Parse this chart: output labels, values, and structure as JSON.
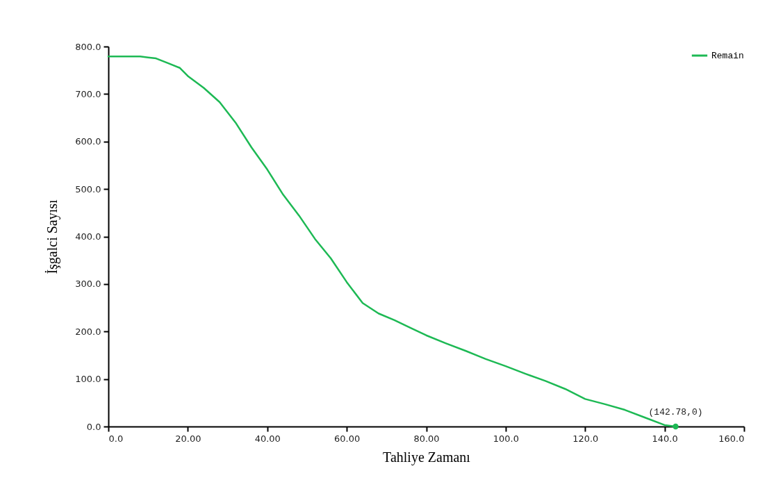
{
  "chart_data": {
    "type": "line",
    "xlabel": "Tahliye Zamanı",
    "ylabel": "İşgalci Sayısı",
    "xlim": [
      0,
      160
    ],
    "ylim": [
      0,
      800
    ],
    "xticks": [
      {
        "value": 0,
        "label": "0.0"
      },
      {
        "value": 20,
        "label": "20.00"
      },
      {
        "value": 40,
        "label": "40.00"
      },
      {
        "value": 60,
        "label": "60.00"
      },
      {
        "value": 80,
        "label": "80.00"
      },
      {
        "value": 100,
        "label": "100.0"
      },
      {
        "value": 120,
        "label": "120.0"
      },
      {
        "value": 140,
        "label": "140.0"
      },
      {
        "value": 160,
        "label": "160.0"
      }
    ],
    "yticks": [
      {
        "value": 0,
        "label": "0.0"
      },
      {
        "value": 100,
        "label": "100.0"
      },
      {
        "value": 200,
        "label": "200.0"
      },
      {
        "value": 300,
        "label": "300.0"
      },
      {
        "value": 400,
        "label": "400.0"
      },
      {
        "value": 500,
        "label": "500.0"
      },
      {
        "value": 600,
        "label": "600.0"
      },
      {
        "value": 700,
        "label": "700.0"
      },
      {
        "value": 800,
        "label": "800.0"
      }
    ],
    "series": [
      {
        "name": "Remain",
        "color": "#1db954",
        "x": [
          0,
          8,
          10,
          12,
          15,
          18,
          20,
          24,
          28,
          32,
          36,
          40,
          44,
          48,
          52,
          56,
          60,
          64,
          68,
          72,
          76,
          80,
          85,
          90,
          95,
          100,
          105,
          110,
          115,
          120,
          125,
          130,
          135,
          140,
          142.78
        ],
        "values": [
          779,
          779,
          777,
          775,
          765,
          755,
          738,
          713,
          683,
          640,
          588,
          541,
          488,
          444,
          395,
          354,
          304,
          260,
          238,
          224,
          208,
          192,
          175,
          159,
          142,
          127,
          111,
          96,
          79,
          58,
          47,
          35,
          19,
          3,
          0
        ]
      },
      {
        "type": "scatter",
        "color": "#1db954",
        "x": [
          142.78
        ],
        "values": [
          0
        ]
      }
    ],
    "annotations": [
      {
        "text": "(142.78,0)",
        "x": 142.78,
        "y": 0
      }
    ],
    "legend": "top right",
    "grid": false
  }
}
